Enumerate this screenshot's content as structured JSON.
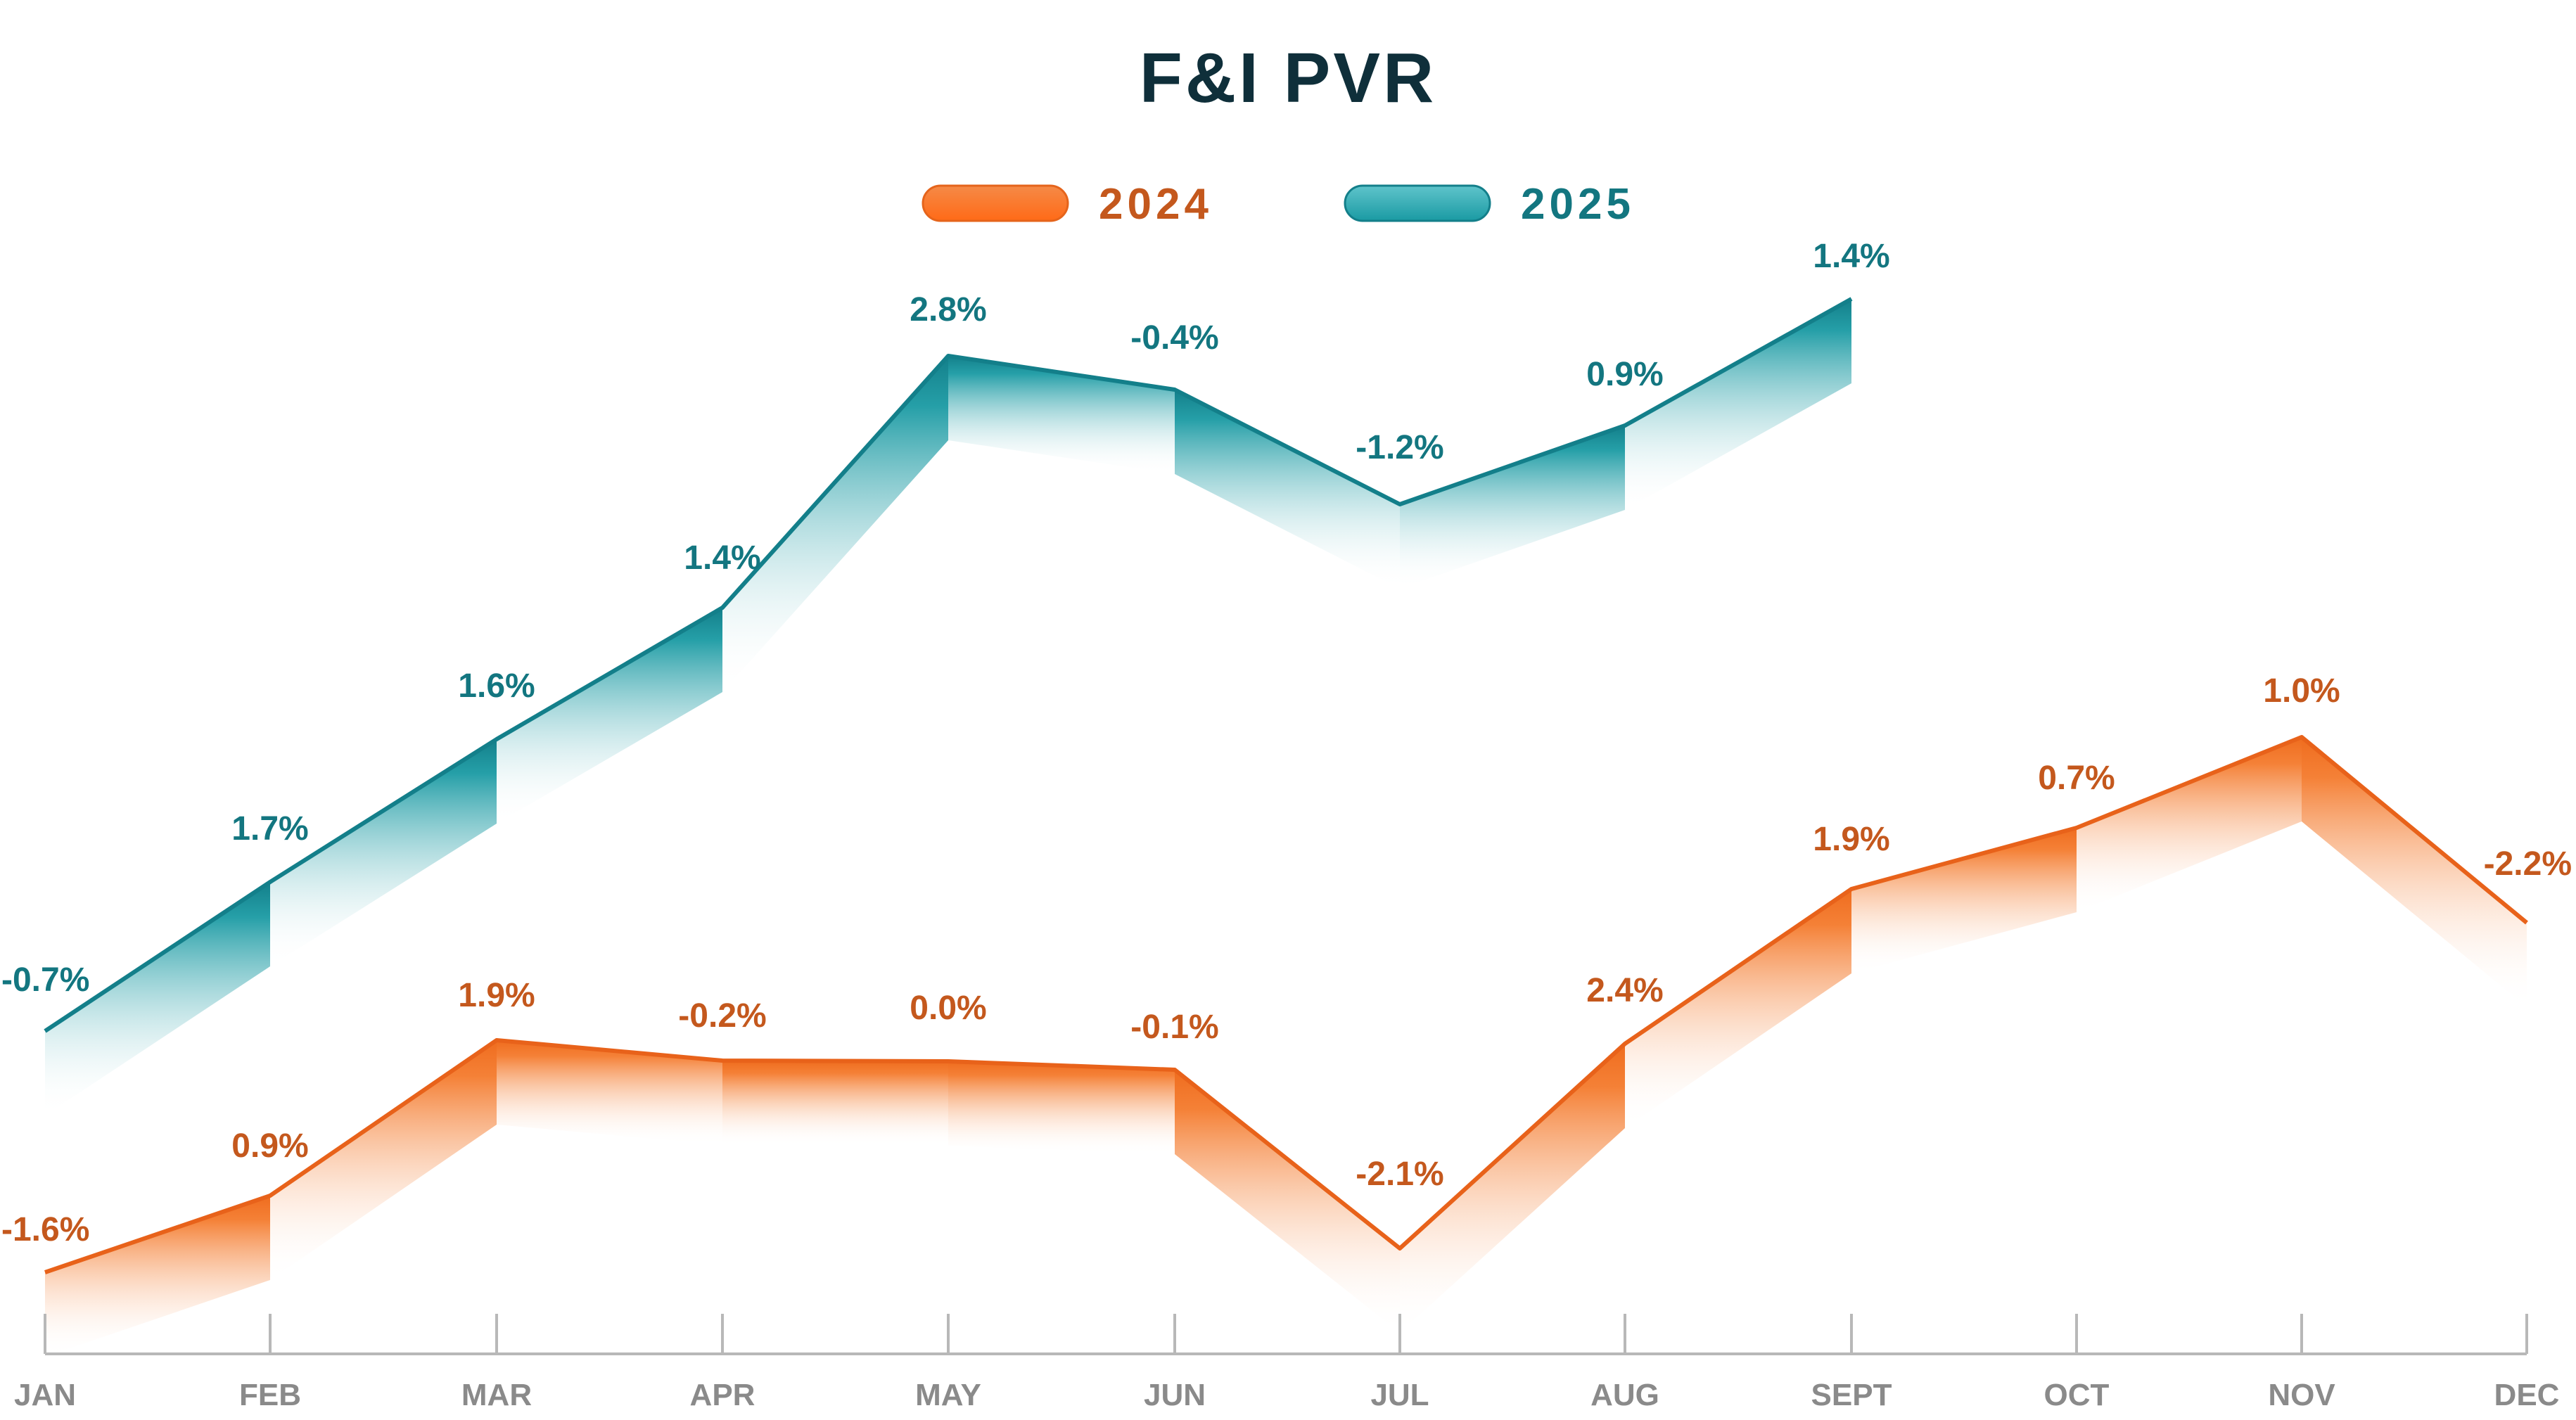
{
  "chart_data": {
    "type": "area",
    "title": "F&I PVR",
    "xlabel": "",
    "ylabel": "",
    "categories": [
      "JAN",
      "FEB",
      "MAR",
      "APR",
      "MAY",
      "JUN",
      "JUL",
      "AUG",
      "SEPT",
      "OCT",
      "NOV",
      "DEC"
    ],
    "series": [
      {
        "name": "2024",
        "color": "#ef6c1e",
        "labels": [
          "-1.6%",
          "0.9%",
          "1.9%",
          "-0.2%",
          "0.0%",
          "-0.1%",
          "-2.1%",
          "2.4%",
          "1.9%",
          "0.7%",
          "1.0%",
          "-2.2%"
        ]
      },
      {
        "name": "2025",
        "color": "#1a9aa3",
        "labels": [
          "-0.7%",
          "1.7%",
          "1.6%",
          "1.4%",
          "2.8%",
          "-0.4%",
          "-1.2%",
          "0.9%",
          "1.4%"
        ]
      }
    ],
    "legend_position": "top-center",
    "grid": false
  }
}
